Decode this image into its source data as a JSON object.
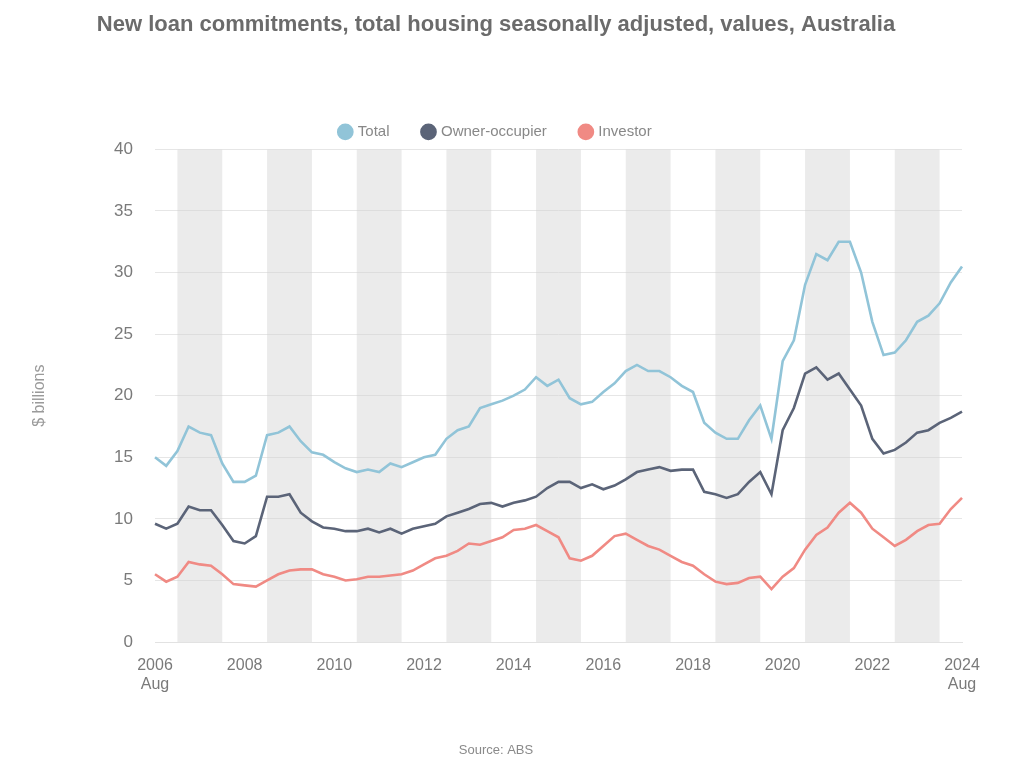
{
  "chart_data": {
    "type": "line",
    "title": "New loan commitments, total housing seasonally adjusted, values, Australia",
    "source": "Source: ABS",
    "y_label": "$ billions",
    "categories": [
      "2006 Aug",
      null,
      null,
      null,
      null,
      null,
      null,
      null,
      "2008",
      null,
      null,
      null,
      null,
      null,
      null,
      null,
      "2010",
      null,
      null,
      null,
      null,
      null,
      null,
      null,
      "2012",
      null,
      null,
      null,
      null,
      null,
      null,
      null,
      "2014",
      null,
      null,
      null,
      null,
      null,
      null,
      null,
      "2016",
      null,
      null,
      null,
      null,
      null,
      null,
      null,
      "2018",
      null,
      null,
      null,
      null,
      null,
      null,
      null,
      "2020",
      null,
      null,
      null,
      null,
      null,
      null,
      null,
      "2022",
      null,
      null,
      null,
      null,
      null,
      null,
      null,
      "2024 Aug"
    ],
    "series": [
      {
        "name": "Total",
        "color": "#91c4d8",
        "values": [
          15.0,
          14.3,
          15.5,
          17.5,
          17.0,
          16.8,
          14.5,
          13.0,
          13.0,
          13.5,
          16.8,
          17.0,
          17.5,
          16.3,
          15.4,
          15.2,
          14.6,
          14.1,
          13.8,
          14.0,
          13.8,
          14.5,
          14.2,
          14.6,
          15.0,
          15.2,
          16.5,
          17.2,
          17.5,
          19.0,
          19.3,
          19.6,
          20.0,
          20.5,
          21.5,
          20.8,
          21.3,
          19.8,
          19.3,
          19.5,
          20.3,
          21.0,
          22.0,
          22.5,
          22.0,
          22.0,
          21.5,
          20.8,
          20.3,
          17.8,
          17.0,
          16.5,
          16.5,
          18.0,
          19.2,
          16.5,
          22.8,
          24.5,
          29.0,
          31.5,
          31.0,
          32.5,
          32.5,
          30.0,
          26.0,
          23.3,
          23.5,
          24.5,
          26.0,
          26.5,
          27.5,
          29.2,
          30.5
        ]
      },
      {
        "name": "Owner-occupier",
        "color": "#5b6478",
        "values": [
          9.6,
          9.2,
          9.6,
          11.0,
          10.7,
          10.7,
          9.5,
          8.2,
          8.0,
          8.6,
          11.8,
          11.8,
          12.0,
          10.5,
          9.8,
          9.3,
          9.2,
          9.0,
          9.0,
          9.2,
          8.9,
          9.2,
          8.8,
          9.2,
          9.4,
          9.6,
          10.2,
          10.5,
          10.8,
          11.2,
          11.3,
          11.0,
          11.3,
          11.5,
          11.8,
          12.5,
          13.0,
          13.0,
          12.5,
          12.8,
          12.4,
          12.7,
          13.2,
          13.8,
          14.0,
          14.2,
          13.9,
          14.0,
          14.0,
          12.2,
          12.0,
          11.7,
          12.0,
          13.0,
          13.8,
          12.0,
          17.2,
          19.0,
          21.8,
          22.3,
          21.3,
          21.8,
          20.5,
          19.2,
          16.5,
          15.3,
          15.6,
          16.2,
          17.0,
          17.2,
          17.8,
          18.2,
          18.7
        ]
      },
      {
        "name": "Investor",
        "color": "#f08a84",
        "values": [
          5.5,
          4.9,
          5.3,
          6.5,
          6.3,
          6.2,
          5.5,
          4.7,
          4.6,
          4.5,
          5.0,
          5.5,
          5.8,
          5.9,
          5.9,
          5.5,
          5.3,
          5.0,
          5.1,
          5.3,
          5.3,
          5.4,
          5.5,
          5.8,
          6.3,
          6.8,
          7.0,
          7.4,
          8.0,
          7.9,
          8.2,
          8.5,
          9.1,
          9.2,
          9.5,
          9.0,
          8.5,
          6.8,
          6.6,
          7.0,
          7.8,
          8.6,
          8.8,
          8.3,
          7.8,
          7.5,
          7.0,
          6.5,
          6.2,
          5.5,
          4.9,
          4.7,
          4.8,
          5.2,
          5.3,
          4.3,
          5.3,
          6.0,
          7.5,
          8.7,
          9.3,
          10.5,
          11.3,
          10.5,
          9.2,
          8.5,
          7.8,
          8.3,
          9.0,
          9.5,
          9.6,
          10.8,
          11.7
        ]
      }
    ],
    "ylim": [
      0,
      40
    ],
    "yticks": [
      0,
      5,
      10,
      15,
      20,
      25,
      30,
      35,
      40
    ],
    "grid": true,
    "legend": "top"
  }
}
